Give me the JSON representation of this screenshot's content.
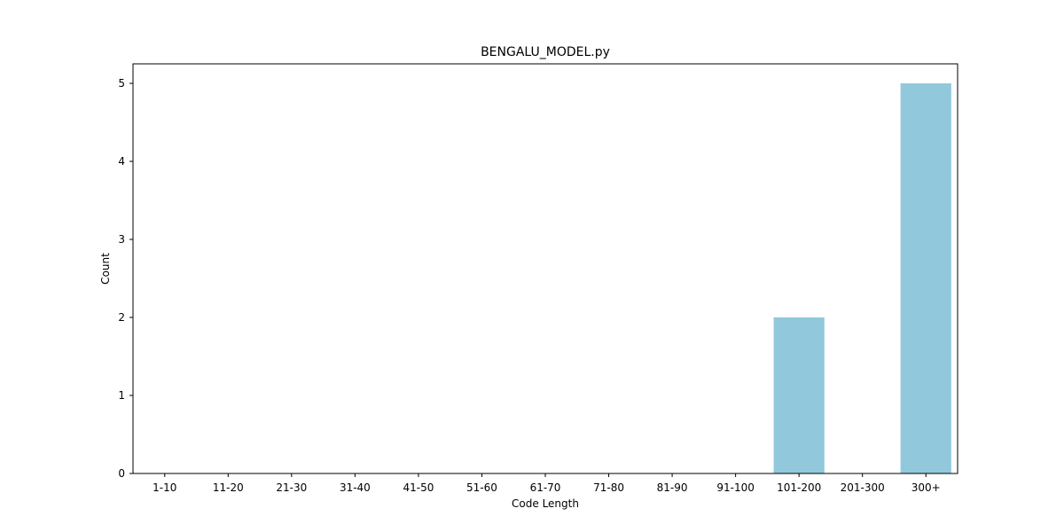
{
  "chart_data": {
    "type": "bar",
    "title": "BENGALU_MODEL.py",
    "xlabel": "Code Length",
    "ylabel": "Count",
    "categories": [
      "1-10",
      "11-20",
      "21-30",
      "31-40",
      "41-50",
      "51-60",
      "61-70",
      "71-80",
      "81-90",
      "91-100",
      "101-200",
      "201-300",
      "300+"
    ],
    "values": [
      0,
      0,
      0,
      0,
      0,
      0,
      0,
      0,
      0,
      0,
      2,
      0,
      5
    ],
    "ylim": [
      0,
      5.25
    ],
    "yticks": [
      0,
      1,
      2,
      3,
      4,
      5
    ],
    "bar_color": "#92c8dc",
    "grid": false,
    "legend": "none"
  }
}
